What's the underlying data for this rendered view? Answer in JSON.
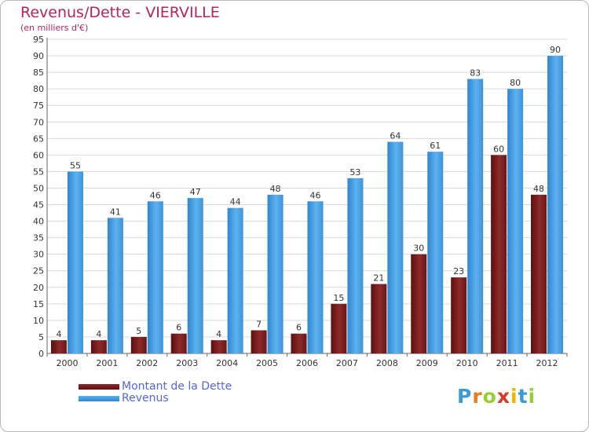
{
  "header": {
    "title": "Revenus/Dette - VIERVILLE",
    "subtitle": "(en milliers d'€)"
  },
  "logo": {
    "letters": [
      "P",
      "r",
      "o",
      "x",
      "i",
      "t",
      "i"
    ],
    "colors": [
      "#3a9bd8",
      "#e87b1e",
      "#9acd32",
      "#d63a2a",
      "#f0b400",
      "#3a9bd8",
      "#9acd32"
    ]
  },
  "chart_data": {
    "type": "bar",
    "title": "Revenus/Dette - VIERVILLE",
    "subtitle": "(en milliers d'€)",
    "xlabel": "",
    "ylabel": "",
    "categories": [
      "2000",
      "2001",
      "2002",
      "2003",
      "2004",
      "2005",
      "2006",
      "2007",
      "2008",
      "2009",
      "2010",
      "2011",
      "2012"
    ],
    "series": [
      {
        "name": "Montant de la Dette",
        "color": "#7a1e1e",
        "values": [
          4,
          4,
          5,
          6,
          4,
          7,
          6,
          15,
          21,
          30,
          23,
          60,
          48
        ]
      },
      {
        "name": "Revenus",
        "color": "#4aa3e6",
        "values": [
          55,
          41,
          46,
          47,
          44,
          48,
          46,
          53,
          64,
          61,
          83,
          80,
          90
        ]
      }
    ],
    "ylim": [
      0,
      95
    ],
    "ytick_step": 5,
    "grid": true,
    "legend_position": "bottom-left",
    "data_labels": true
  }
}
